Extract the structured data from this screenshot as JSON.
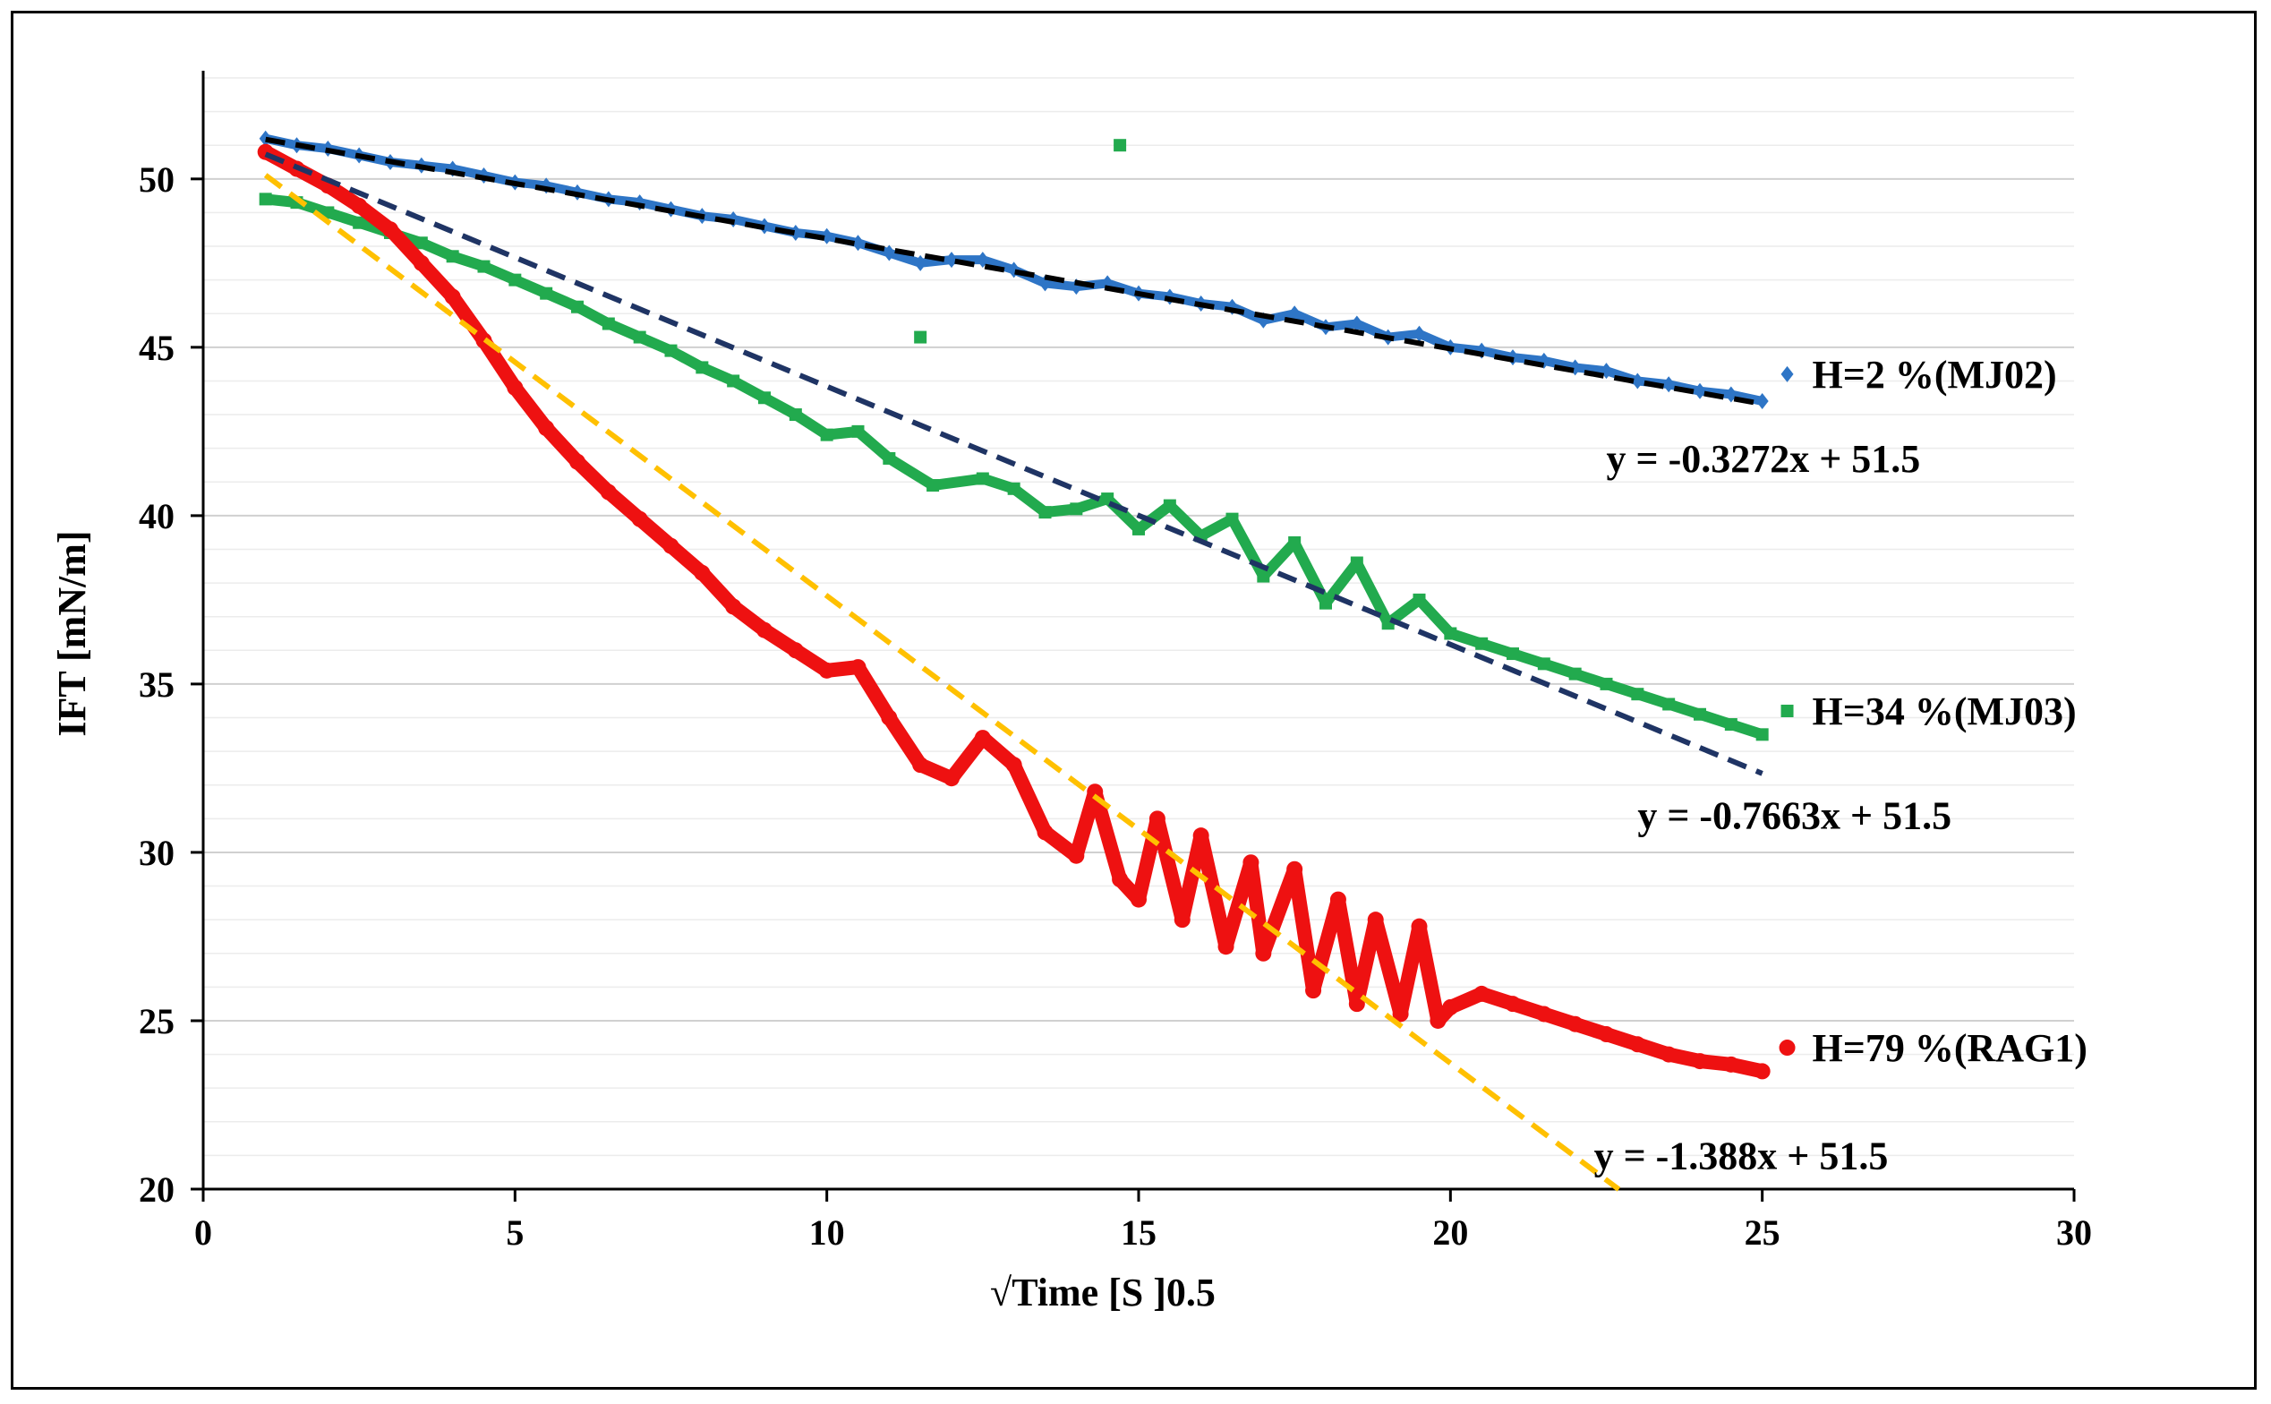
{
  "chart_data": {
    "type": "scatter",
    "title": "",
    "xlabel": "√Time [S ]0.5",
    "ylabel": "IFT [mN/m]",
    "xlim": [
      0,
      30
    ],
    "ylim": [
      20,
      53
    ],
    "xticks": [
      0,
      5,
      10,
      15,
      20,
      25,
      30
    ],
    "yticks": [
      20,
      25,
      30,
      35,
      40,
      45,
      50
    ],
    "minor_grid_step": 1,
    "grid": true,
    "series": [
      {
        "name": "H=2 %(MJ02)",
        "color": "#2e75c6",
        "marker": "diamond",
        "equation": "y = -0.3272x + 51.5",
        "fit": {
          "slope": -0.3272,
          "intercept": 51.5,
          "color": "#000000",
          "x_range": [
            1,
            25
          ]
        },
        "points": [
          [
            1,
            51.2
          ],
          [
            1.5,
            51.0
          ],
          [
            2,
            50.9
          ],
          [
            2.5,
            50.7
          ],
          [
            3,
            50.5
          ],
          [
            3.5,
            50.4
          ],
          [
            4,
            50.3
          ],
          [
            4.5,
            50.1
          ],
          [
            5,
            49.9
          ],
          [
            5.5,
            49.8
          ],
          [
            6,
            49.6
          ],
          [
            6.5,
            49.4
          ],
          [
            7,
            49.3
          ],
          [
            7.5,
            49.1
          ],
          [
            8,
            48.9
          ],
          [
            8.5,
            48.8
          ],
          [
            9,
            48.6
          ],
          [
            9.5,
            48.4
          ],
          [
            10,
            48.3
          ],
          [
            10.5,
            48.1
          ],
          [
            11,
            47.8
          ],
          [
            11.5,
            47.5
          ],
          [
            12,
            47.6
          ],
          [
            12.5,
            47.6
          ],
          [
            13,
            47.3
          ],
          [
            13.5,
            46.9
          ],
          [
            14,
            46.8
          ],
          [
            14.5,
            46.9
          ],
          [
            15,
            46.6
          ],
          [
            15.5,
            46.5
          ],
          [
            16,
            46.3
          ],
          [
            16.5,
            46.2
          ],
          [
            17,
            45.8
          ],
          [
            17.5,
            46.0
          ],
          [
            18,
            45.6
          ],
          [
            18.5,
            45.7
          ],
          [
            19,
            45.3
          ],
          [
            19.5,
            45.4
          ],
          [
            20,
            45.0
          ],
          [
            20.5,
            44.9
          ],
          [
            21,
            44.7
          ],
          [
            21.5,
            44.6
          ],
          [
            22,
            44.4
          ],
          [
            22.5,
            44.3
          ],
          [
            23,
            44.0
          ],
          [
            23.5,
            43.9
          ],
          [
            24,
            43.7
          ],
          [
            24.5,
            43.6
          ],
          [
            25,
            43.4
          ]
        ]
      },
      {
        "name": "H=34 %(MJ03)",
        "color": "#22aa4e",
        "marker": "square",
        "equation": "y = -0.7663x + 51.5",
        "fit": {
          "slope": -0.7663,
          "intercept": 51.5,
          "color": "#1f3464",
          "x_range": [
            1,
            25
          ]
        },
        "points": [
          [
            1,
            49.4
          ],
          [
            1.5,
            49.3
          ],
          [
            2,
            49.0
          ],
          [
            2.5,
            48.7
          ],
          [
            3,
            48.4
          ],
          [
            3.5,
            48.1
          ],
          [
            4,
            47.7
          ],
          [
            4.5,
            47.4
          ],
          [
            5,
            47.0
          ],
          [
            5.5,
            46.6
          ],
          [
            6,
            46.2
          ],
          [
            6.5,
            45.7
          ],
          [
            7,
            45.3
          ],
          [
            7.5,
            44.9
          ],
          [
            8,
            44.4
          ],
          [
            8.5,
            44.0
          ],
          [
            9,
            43.5
          ],
          [
            9.5,
            43.0
          ],
          [
            10,
            42.4
          ],
          [
            10.5,
            42.5
          ],
          [
            11,
            41.7
          ],
          [
            11.5,
            45.3
          ],
          [
            11.7,
            40.9
          ],
          [
            12.5,
            41.1
          ],
          [
            13,
            40.8
          ],
          [
            13.5,
            40.1
          ],
          [
            14,
            40.2
          ],
          [
            14.5,
            40.5
          ],
          [
            14.7,
            51.0
          ],
          [
            15,
            39.6
          ],
          [
            15.5,
            40.3
          ],
          [
            16,
            39.4
          ],
          [
            16.5,
            39.9
          ],
          [
            17,
            38.2
          ],
          [
            17.5,
            39.2
          ],
          [
            18,
            37.4
          ],
          [
            18.5,
            38.6
          ],
          [
            19,
            36.8
          ],
          [
            19.5,
            37.5
          ],
          [
            20,
            36.5
          ],
          [
            20.5,
            36.2
          ],
          [
            21,
            35.9
          ],
          [
            21.5,
            35.6
          ],
          [
            22,
            35.3
          ],
          [
            22.5,
            35.0
          ],
          [
            23,
            34.7
          ],
          [
            23.5,
            34.4
          ],
          [
            24,
            34.1
          ],
          [
            24.5,
            33.8
          ],
          [
            25,
            33.5
          ]
        ]
      },
      {
        "name": "H=79 %(RAG1)",
        "color": "#ee1111",
        "marker": "circle",
        "equation": "y = -1.388x + 51.5",
        "fit": {
          "slope": -1.388,
          "intercept": 51.5,
          "color": "#ffc000",
          "x_range": [
            1,
            22.7
          ]
        },
        "points": [
          [
            1,
            50.8
          ],
          [
            1.5,
            50.3
          ],
          [
            2,
            49.8
          ],
          [
            2.5,
            49.2
          ],
          [
            3,
            48.5
          ],
          [
            3.5,
            47.5
          ],
          [
            4,
            46.5
          ],
          [
            4.5,
            45.2
          ],
          [
            5,
            43.8
          ],
          [
            5.5,
            42.6
          ],
          [
            6,
            41.6
          ],
          [
            6.5,
            40.7
          ],
          [
            7,
            39.9
          ],
          [
            7.5,
            39.1
          ],
          [
            8,
            38.3
          ],
          [
            8.5,
            37.3
          ],
          [
            9,
            36.6
          ],
          [
            9.5,
            36.0
          ],
          [
            10,
            35.4
          ],
          [
            10.5,
            35.5
          ],
          [
            11,
            34.0
          ],
          [
            11.5,
            32.6
          ],
          [
            12,
            32.2
          ],
          [
            12.5,
            33.4
          ],
          [
            13,
            32.6
          ],
          [
            13.5,
            30.6
          ],
          [
            14,
            29.9
          ],
          [
            14.3,
            31.8
          ],
          [
            14.7,
            29.2
          ],
          [
            15,
            28.6
          ],
          [
            15.3,
            31.0
          ],
          [
            15.7,
            28.0
          ],
          [
            16,
            30.5
          ],
          [
            16.4,
            27.2
          ],
          [
            16.8,
            29.7
          ],
          [
            17,
            27.0
          ],
          [
            17.5,
            29.5
          ],
          [
            17.8,
            25.9
          ],
          [
            18.2,
            28.6
          ],
          [
            18.5,
            25.5
          ],
          [
            18.8,
            28.0
          ],
          [
            19.2,
            25.2
          ],
          [
            19.5,
            27.8
          ],
          [
            19.8,
            25.0
          ],
          [
            20,
            25.4
          ],
          [
            20.5,
            25.8
          ],
          [
            21,
            25.5
          ],
          [
            21.5,
            25.2
          ],
          [
            22,
            24.9
          ],
          [
            22.5,
            24.6
          ],
          [
            23,
            24.3
          ],
          [
            23.5,
            24.0
          ],
          [
            24,
            23.8
          ],
          [
            24.5,
            23.7
          ],
          [
            25,
            23.5
          ]
        ]
      }
    ]
  }
}
